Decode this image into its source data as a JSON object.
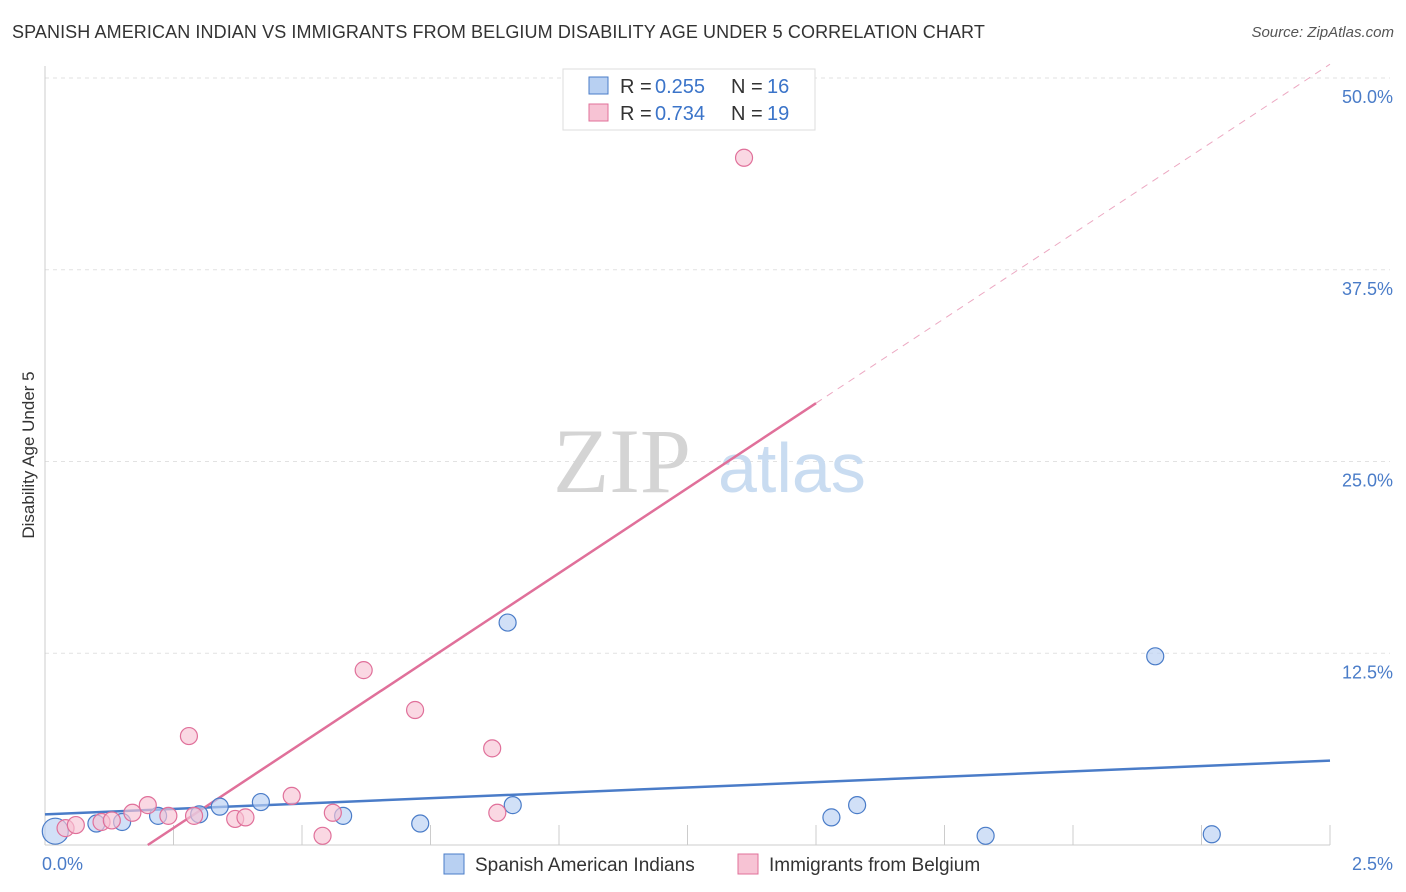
{
  "chart_data": {
    "type": "scatter",
    "title": "SPANISH AMERICAN INDIAN VS IMMIGRANTS FROM BELGIUM DISABILITY AGE UNDER 5 CORRELATION CHART",
    "source": "Source: ZipAtlas.com",
    "ylabel": "Disability Age Under 5",
    "xlim": [
      0,
      2.5
    ],
    "ylim": [
      0,
      50
    ],
    "x_tick_labels": [
      {
        "value": 0,
        "label": "0.0%"
      },
      {
        "value": 2.5,
        "label": "2.5%"
      }
    ],
    "y_tick_labels": [
      {
        "value": 12.5,
        "label": "12.5%"
      },
      {
        "value": 25,
        "label": "25.0%"
      },
      {
        "value": 37.5,
        "label": "37.5%"
      },
      {
        "value": 50,
        "label": "50.0%"
      }
    ],
    "grid": true,
    "legend_position": "top-center",
    "series": [
      {
        "name": "Spanish American Indians",
        "color": "#4a7cc8",
        "fill": "#b8d0f2",
        "legend_r": "0.255",
        "legend_n": "16",
        "x": [
          0.02,
          0.1,
          0.15,
          0.22,
          0.3,
          0.34,
          0.42,
          0.58,
          0.73,
          0.9,
          0.91,
          1.53,
          1.58,
          1.83,
          2.16,
          2.27
        ],
        "y": [
          0.9,
          1.4,
          1.5,
          1.9,
          2.0,
          2.5,
          2.8,
          1.9,
          1.4,
          14.5,
          2.6,
          1.8,
          2.6,
          0.6,
          12.3,
          0.7
        ],
        "trend": {
          "x": [
            0,
            2.5
          ],
          "y": [
            2.0,
            5.5
          ]
        }
      },
      {
        "name": "Immigrants from Belgium",
        "color": "#e0709a",
        "fill": "#f7c3d4",
        "legend_r": "0.734",
        "legend_n": "19",
        "x": [
          0.04,
          0.06,
          0.11,
          0.13,
          0.17,
          0.2,
          0.24,
          0.28,
          0.29,
          0.37,
          0.39,
          0.48,
          0.54,
          0.56,
          0.62,
          0.72,
          0.87,
          0.88,
          1.36
        ],
        "y": [
          1.1,
          1.3,
          1.5,
          1.6,
          2.1,
          2.6,
          1.9,
          7.1,
          1.9,
          1.7,
          1.8,
          3.2,
          0.6,
          2.1,
          11.4,
          8.8,
          6.3,
          2.1,
          44.8
        ],
        "trend": {
          "x": [
            0.2,
            1.5
          ],
          "y": [
            0,
            28.8
          ]
        },
        "trend_dashed": {
          "x": [
            1.5,
            2.5
          ],
          "y": [
            28.8,
            50.9
          ]
        }
      }
    ]
  }
}
